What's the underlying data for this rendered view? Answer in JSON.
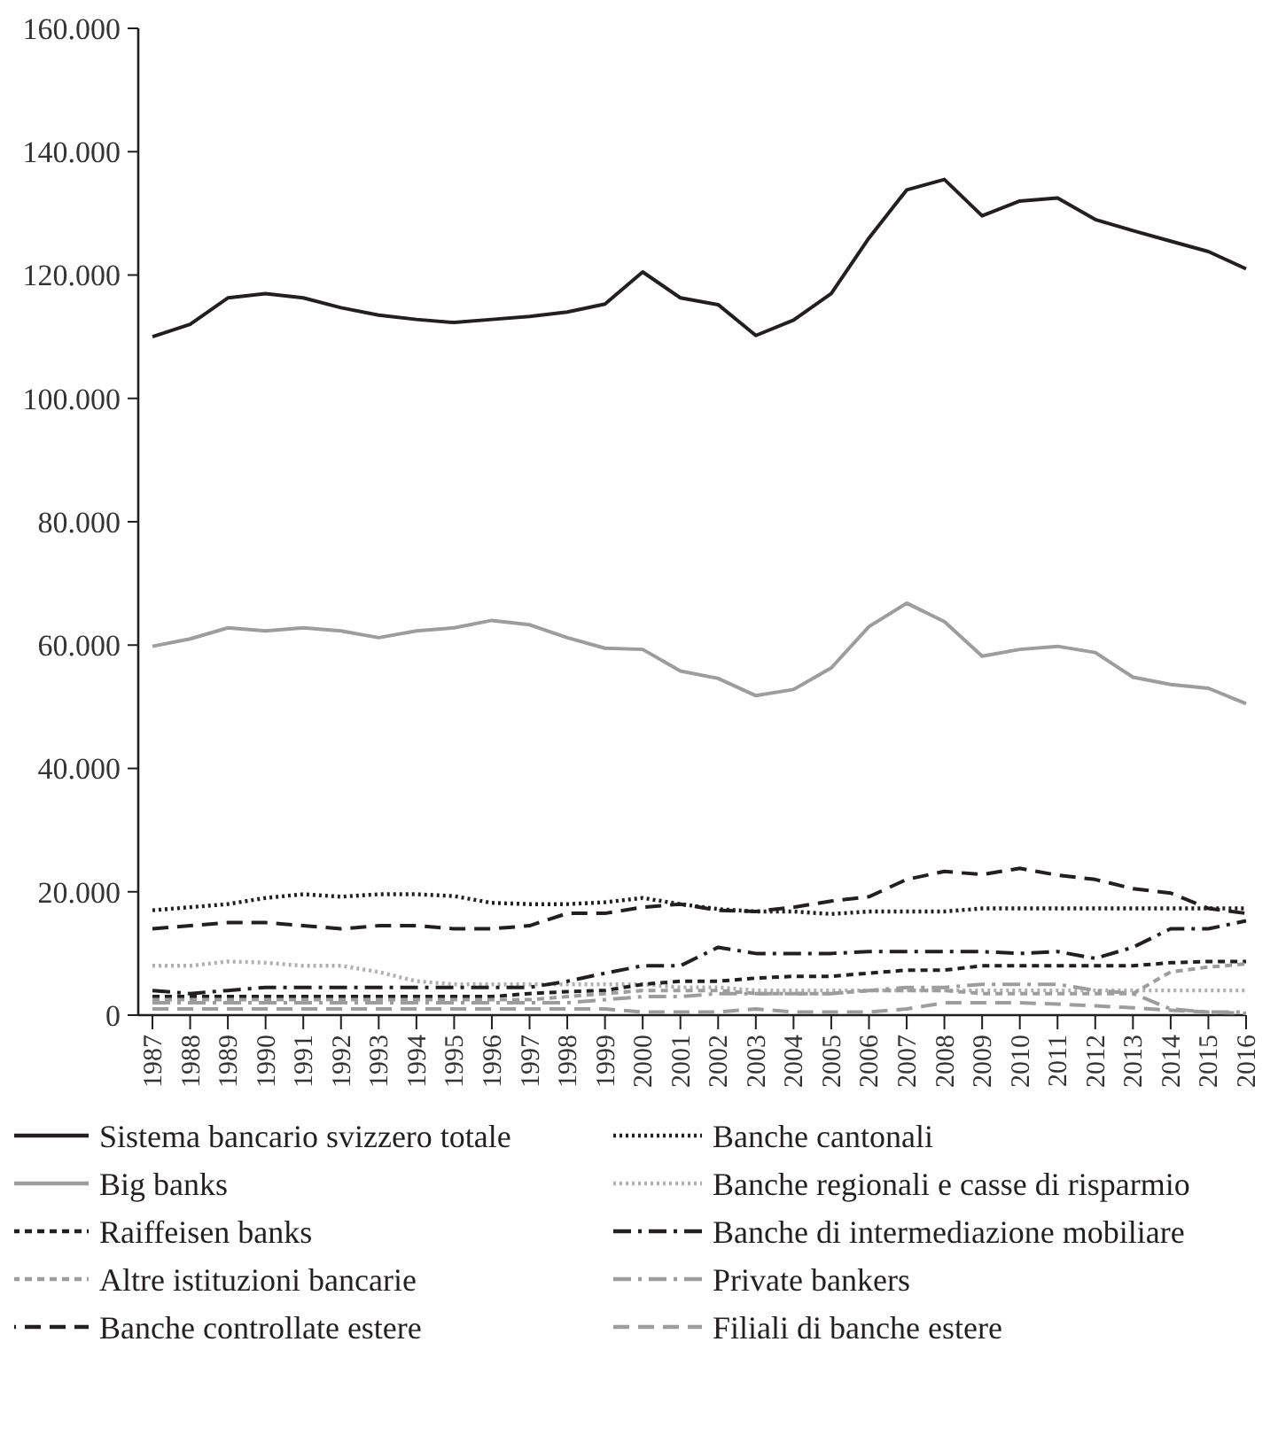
{
  "chart_data": {
    "type": "line",
    "categories": [
      "1987",
      "1988",
      "1989",
      "1990",
      "1991",
      "1992",
      "1993",
      "1994",
      "1995",
      "1996",
      "1997",
      "1998",
      "1999",
      "2000",
      "2001",
      "2002",
      "2003",
      "2004",
      "2005",
      "2006",
      "2007",
      "2008",
      "2009",
      "2010",
      "2011",
      "2012",
      "2013",
      "2014",
      "2015",
      "2016"
    ],
    "ylim": [
      0,
      160000
    ],
    "yticks": [
      {
        "value": 0,
        "label": "0"
      },
      {
        "value": 20000,
        "label": "20.000"
      },
      {
        "value": 40000,
        "label": "40.000"
      },
      {
        "value": 60000,
        "label": "60.000"
      },
      {
        "value": 80000,
        "label": "80.000"
      },
      {
        "value": 100000,
        "label": "100.000"
      },
      {
        "value": 120000,
        "label": "120.000"
      },
      {
        "value": 140000,
        "label": "140.000"
      },
      {
        "value": 160000,
        "label": "160.000"
      }
    ],
    "grid": false,
    "legend": "bottom",
    "marker": "none",
    "series": [
      {
        "name": "Sistema bancario svizzero totale",
        "color": "#231f20",
        "line_style": "solid",
        "values": [
          110000,
          112000,
          116300,
          117000,
          116300,
          114700,
          113500,
          112800,
          112300,
          112800,
          113300,
          114000,
          115300,
          120500,
          116300,
          115200,
          110200,
          112700,
          117000,
          126000,
          133800,
          135500,
          129600,
          132000,
          132500,
          129000,
          127200,
          125500,
          123800,
          121000
        ]
      },
      {
        "name": "Banche cantonali",
        "color": "#231f20",
        "line_style": "dotted",
        "values": [
          17000,
          17500,
          18000,
          19000,
          19600,
          19200,
          19600,
          19600,
          19300,
          18200,
          18000,
          18000,
          18300,
          19000,
          18000,
          17200,
          16800,
          16800,
          16400,
          16800,
          16800,
          16800,
          17300,
          17300,
          17300,
          17300,
          17300,
          17300,
          17300,
          17300
        ]
      },
      {
        "name": "Big banks",
        "color": "#9d9d9d",
        "line_style": "solid",
        "values": [
          59800,
          61000,
          62800,
          62300,
          62800,
          62300,
          61200,
          62300,
          62800,
          64000,
          63300,
          61200,
          59500,
          59300,
          55800,
          54600,
          51800,
          52800,
          56300,
          63000,
          66800,
          63800,
          58200,
          59300,
          59800,
          58800,
          54800,
          53600,
          53000,
          50500
        ]
      },
      {
        "name": "Banche regionali e casse di risparmio",
        "color": "#b0b0b0",
        "line_style": "dotted",
        "values": [
          8000,
          8000,
          8700,
          8500,
          8000,
          8000,
          7000,
          5500,
          5000,
          5000,
          5000,
          5000,
          5000,
          5000,
          4500,
          4500,
          4000,
          4000,
          4000,
          4000,
          4000,
          4000,
          4000,
          4000,
          4000,
          4000,
          4000,
          4000,
          4000,
          4000
        ]
      },
      {
        "name": "Raiffeisen banks",
        "color": "#231f20",
        "line_style": "dashed",
        "values": [
          3000,
          3000,
          3000,
          3000,
          3000,
          3000,
          3000,
          3000,
          3000,
          3000,
          3500,
          3800,
          4000,
          5000,
          5500,
          5500,
          6000,
          6300,
          6300,
          6800,
          7300,
          7300,
          8000,
          8000,
          8000,
          8000,
          8000,
          8500,
          8700,
          8700
        ]
      },
      {
        "name": "Banche di intermediazione mobiliare",
        "color": "#231f20",
        "line_style": "dashdot",
        "values": [
          4000,
          3500,
          4000,
          4500,
          4500,
          4500,
          4500,
          4500,
          4500,
          4500,
          4500,
          5500,
          6800,
          8000,
          8000,
          11000,
          10000,
          10000,
          10000,
          10300,
          10300,
          10300,
          10300,
          10000,
          10300,
          9200,
          11000,
          14000,
          14000,
          15300
        ]
      },
      {
        "name": "Altre istituzioni bancarie",
        "color": "#9d9d9d",
        "line_style": "dashed",
        "values": [
          2500,
          2500,
          2500,
          2500,
          2500,
          2500,
          2500,
          2500,
          2500,
          2500,
          2500,
          3000,
          3500,
          4000,
          4000,
          4000,
          3500,
          3500,
          3500,
          4000,
          4000,
          4000,
          3500,
          3500,
          3500,
          3500,
          3500,
          7000,
          7800,
          8300
        ]
      },
      {
        "name": "Private bankers",
        "color": "#9d9d9d",
        "line_style": "dashdot",
        "values": [
          2000,
          2000,
          2000,
          2000,
          2000,
          2000,
          2000,
          2000,
          2000,
          2000,
          2000,
          2000,
          2500,
          3000,
          3000,
          3500,
          3500,
          3500,
          3500,
          4000,
          4500,
          4500,
          5000,
          5000,
          5000,
          4000,
          3500,
          1000,
          500,
          500
        ]
      },
      {
        "name": "Banche controllate estere",
        "color": "#231f20",
        "line_style": "longdash",
        "values": [
          14000,
          14500,
          15000,
          15000,
          14500,
          14000,
          14500,
          14500,
          14000,
          14000,
          14500,
          16500,
          16500,
          17500,
          18000,
          17000,
          16800,
          17500,
          18500,
          19200,
          22000,
          23300,
          22800,
          23800,
          22700,
          22000,
          20500,
          19800,
          17300,
          16500
        ]
      },
      {
        "name": "Filiali di banche estere",
        "color": "#9d9d9d",
        "line_style": "longdash",
        "values": [
          1000,
          1000,
          1000,
          1000,
          1000,
          1000,
          1000,
          1000,
          1000,
          1000,
          1000,
          1000,
          1000,
          500,
          500,
          500,
          1000,
          500,
          500,
          500,
          1000,
          2000,
          2000,
          2000,
          1800,
          1500,
          1200,
          800,
          500,
          300
        ]
      }
    ]
  }
}
